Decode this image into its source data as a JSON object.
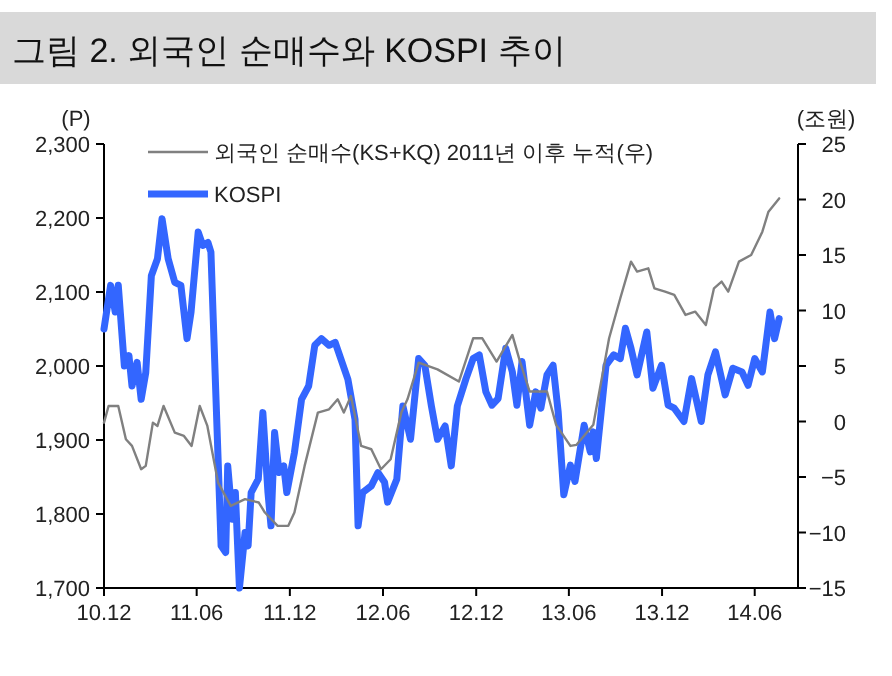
{
  "chart_data": {
    "type": "line",
    "title": "그림 2. 외국인 순매수와 KOSPI 추이",
    "ylabel": "(P)",
    "y2label": "(조원)",
    "legend": "top left",
    "xlim": [
      "2010-12-01",
      "2014-08-25"
    ],
    "xticks": [
      {
        "value": "2010-12-01",
        "label": "10.12"
      },
      {
        "value": "2011-06-01",
        "label": "11.06"
      },
      {
        "value": "2011-12-01",
        "label": "11.12"
      },
      {
        "value": "2012-06-01",
        "label": "12.06"
      },
      {
        "value": "2012-12-01",
        "label": "12.12"
      },
      {
        "value": "2013-06-01",
        "label": "13.06"
      },
      {
        "value": "2013-12-01",
        "label": "13.12"
      },
      {
        "value": "2014-06-01",
        "label": "14.06"
      }
    ],
    "ylim": [
      1700,
      2300
    ],
    "yticks": [
      {
        "value": 1700,
        "label": "1,700"
      },
      {
        "value": 1800,
        "label": "1,800"
      },
      {
        "value": 1900,
        "label": "1,900"
      },
      {
        "value": 2000,
        "label": "2,000"
      },
      {
        "value": 2100,
        "label": "2,100"
      },
      {
        "value": 2200,
        "label": "2,200"
      },
      {
        "value": 2300,
        "label": "2,300"
      }
    ],
    "y2lim": [
      -15,
      25
    ],
    "y2ticks": [
      {
        "value": -15,
        "label": "−15"
      },
      {
        "value": -10,
        "label": "−10"
      },
      {
        "value": -5,
        "label": "−5"
      },
      0,
      5,
      10,
      15,
      20,
      25
    ],
    "series": [
      {
        "name": "외국인 순매수(KS+KQ) 2011년 이후 누적(우)",
        "color": "#808080",
        "axis": "y2",
        "x": [
          "2010-12-01",
          "2010-12-10",
          "2010-12-29",
          "2011-01-13",
          "2011-01-25",
          "2011-02-12",
          "2011-02-21",
          "2011-03-07",
          "2011-03-16",
          "2011-03-28",
          "2011-04-19",
          "2011-05-07",
          "2011-05-22",
          "2011-06-07",
          "2011-06-22",
          "2011-07-13",
          "2011-08-07",
          "2011-09-04",
          "2011-10-01",
          "2011-10-13",
          "2011-11-07",
          "2011-11-28",
          "2011-12-10",
          "2011-12-30",
          "2012-01-25",
          "2012-02-16",
          "2012-03-04",
          "2012-03-16",
          "2012-03-30",
          "2012-04-19",
          "2012-05-09",
          "2012-05-28",
          "2012-06-16",
          "2012-07-07",
          "2012-07-19",
          "2012-08-10",
          "2012-09-16",
          "2012-10-28",
          "2012-11-25",
          "2012-12-13",
          "2013-01-10",
          "2013-02-10",
          "2013-02-25",
          "2013-03-16",
          "2013-04-19",
          "2013-05-07",
          "2013-06-04",
          "2013-06-16",
          "2013-07-19",
          "2013-08-19",
          "2013-09-10",
          "2013-10-01",
          "2013-10-13",
          "2013-11-04",
          "2013-11-16",
          "2013-12-07",
          "2013-12-25",
          "2014-01-16",
          "2014-02-04",
          "2014-02-25",
          "2014-03-13",
          "2014-03-28",
          "2014-04-10",
          "2014-05-01",
          "2014-05-25",
          "2014-06-16",
          "2014-06-28",
          "2014-07-19"
        ],
        "values": [
          -0.1,
          1.4,
          1.4,
          -1.6,
          -2.2,
          -4.3,
          -4.0,
          -0.1,
          -0.4,
          1.4,
          -1.0,
          -1.3,
          -2.2,
          1.4,
          -0.4,
          -5.5,
          -7.6,
          -7.0,
          -7.3,
          -8.2,
          -9.4,
          -9.4,
          -8.2,
          -4.0,
          0.8,
          1.1,
          2.0,
          0.8,
          2.3,
          -2.2,
          -2.5,
          -4.3,
          -3.4,
          0.8,
          2.0,
          5.3,
          4.7,
          3.6,
          7.5,
          7.5,
          5.4,
          7.8,
          5.4,
          2.7,
          2.7,
          -0.3,
          -2.2,
          -2.1,
          -0.3,
          7.5,
          11.1,
          14.4,
          13.5,
          13.8,
          12.0,
          11.7,
          11.4,
          9.6,
          9.9,
          8.7,
          12.0,
          12.6,
          11.7,
          14.4,
          15.0,
          17.1,
          18.9,
          20.1
        ]
      },
      {
        "name": "KOSPI",
        "color": "#3366ff",
        "x": [
          "2010-12-01",
          "2010-12-14",
          "2010-12-23",
          "2010-12-29",
          "2011-01-10",
          "2011-01-19",
          "2011-01-25",
          "2011-02-04",
          "2011-02-12",
          "2011-02-21",
          "2011-03-04",
          "2011-03-16",
          "2011-03-25",
          "2011-04-06",
          "2011-04-19",
          "2011-05-01",
          "2011-05-13",
          "2011-05-21",
          "2011-06-04",
          "2011-06-13",
          "2011-06-23",
          "2011-06-29",
          "2011-07-19",
          "2011-07-28",
          "2011-08-01",
          "2011-08-10",
          "2011-08-16",
          "2011-08-24",
          "2011-09-04",
          "2011-09-10",
          "2011-09-16",
          "2011-09-30",
          "2011-10-09",
          "2011-10-19",
          "2011-10-25",
          "2011-11-01",
          "2011-11-10",
          "2011-11-19",
          "2011-11-25",
          "2011-12-10",
          "2011-12-24",
          "2012-01-07",
          "2012-01-19",
          "2012-02-01",
          "2012-02-16",
          "2012-02-28",
          "2012-03-10",
          "2012-03-24",
          "2012-04-07",
          "2012-04-13",
          "2012-04-22",
          "2012-05-09",
          "2012-05-22",
          "2012-06-04",
          "2012-06-10",
          "2012-06-28",
          "2012-07-10",
          "2012-07-25",
          "2012-08-10",
          "2012-08-22",
          "2012-09-04",
          "2012-09-16",
          "2012-10-01",
          "2012-10-13",
          "2012-10-25",
          "2012-11-11",
          "2012-11-25",
          "2012-12-07",
          "2012-12-20",
          "2013-01-01",
          "2013-01-13",
          "2013-01-28",
          "2013-02-10",
          "2013-02-19",
          "2013-03-01",
          "2013-03-16",
          "2013-03-28",
          "2013-04-07",
          "2013-04-19",
          "2013-05-01",
          "2013-05-11",
          "2013-05-22",
          "2013-06-04",
          "2013-06-13",
          "2013-07-01",
          "2013-07-13",
          "2013-07-19",
          "2013-07-25",
          "2013-08-13",
          "2013-08-28",
          "2013-09-10",
          "2013-09-20",
          "2013-10-01",
          "2013-10-13",
          "2013-11-01",
          "2013-11-13",
          "2013-11-30",
          "2013-12-13",
          "2013-12-25",
          "2014-01-13",
          "2014-01-28",
          "2014-02-16",
          "2014-03-01",
          "2014-03-16",
          "2014-04-04",
          "2014-04-19",
          "2014-05-07",
          "2014-05-19",
          "2014-06-01",
          "2014-06-16",
          "2014-06-22",
          "2014-07-01",
          "2014-07-10",
          "2014-07-19"
        ],
        "values": [
          2050,
          2109,
          2073,
          2109,
          2000,
          2014,
          1973,
          2005,
          1955,
          1991,
          2122,
          2145,
          2199,
          2145,
          2113,
          2109,
          2037,
          2073,
          2181,
          2163,
          2167,
          2154,
          1757,
          1748,
          1865,
          1793,
          1829,
          1700,
          1775,
          1757,
          1829,
          1847,
          1937,
          1829,
          1784,
          1910,
          1856,
          1865,
          1829,
          1883,
          1955,
          1973,
          2028,
          2037,
          2028,
          2032,
          2010,
          1982,
          1928,
          1784,
          1829,
          1838,
          1856,
          1843,
          1816,
          1847,
          1946,
          1901,
          2010,
          2001,
          1946,
          1901,
          1919,
          1865,
          1946,
          1983,
          2010,
          2015,
          1965,
          1947,
          1956,
          2024,
          1992,
          1947,
          2006,
          1920,
          1965,
          1943,
          1988,
          2001,
          1938,
          1826,
          1866,
          1844,
          1920,
          1884,
          1911,
          1875,
          2001,
          2015,
          2010,
          2051,
          2024,
          1988,
          2046,
          1970,
          2001,
          1947,
          1943,
          1925,
          1983,
          1925,
          1988,
          2019,
          1961,
          1997,
          1992,
          1974,
          2010,
          1992,
          2024,
          2073,
          2037,
          2064
        ]
      }
    ]
  }
}
